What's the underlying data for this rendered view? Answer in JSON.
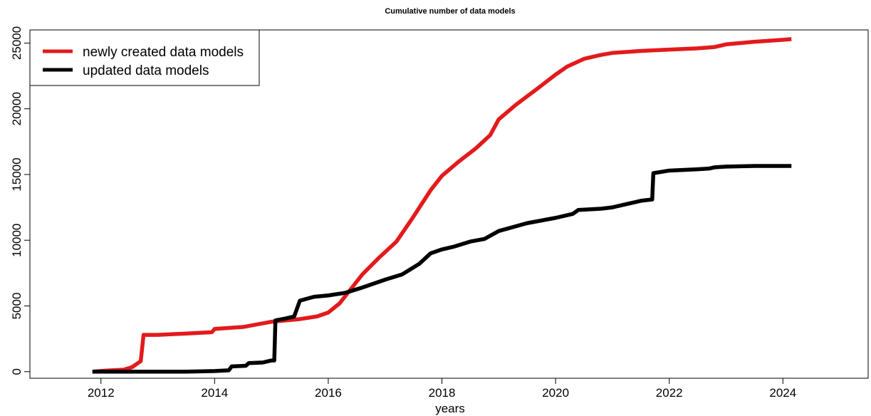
{
  "chart_data": {
    "type": "line",
    "title": "Cumulative number of data models",
    "xlabel": "years",
    "ylabel": "",
    "xlim": [
      2010.75,
      2025.5
    ],
    "ylim": [
      -500,
      26000
    ],
    "x_ticks": [
      2012,
      2014,
      2016,
      2018,
      2020,
      2022,
      2024
    ],
    "x_tick_labels": [
      "2012",
      "2014",
      "2016",
      "2018",
      "2020",
      "2022",
      "2024"
    ],
    "y_ticks": [
      0,
      5000,
      10000,
      15000,
      20000,
      25000
    ],
    "y_tick_labels": [
      "0",
      "5000",
      "10000",
      "15000",
      "20000",
      "25000"
    ],
    "grid": false,
    "legend_position": "top-left",
    "series": [
      {
        "name": "newly created data models",
        "color": "#e31a1c",
        "points": [
          [
            2011.85,
            0
          ],
          [
            2012.1,
            80
          ],
          [
            2012.4,
            150
          ],
          [
            2012.55,
            350
          ],
          [
            2012.7,
            800
          ],
          [
            2012.75,
            2800
          ],
          [
            2013.0,
            2800
          ],
          [
            2013.5,
            2900
          ],
          [
            2013.95,
            3000
          ],
          [
            2014.0,
            3250
          ],
          [
            2014.5,
            3400
          ],
          [
            2015.0,
            3800
          ],
          [
            2015.5,
            4000
          ],
          [
            2015.8,
            4200
          ],
          [
            2016.0,
            4500
          ],
          [
            2016.2,
            5200
          ],
          [
            2016.4,
            6300
          ],
          [
            2016.6,
            7400
          ],
          [
            2016.9,
            8700
          ],
          [
            2017.2,
            9900
          ],
          [
            2017.5,
            11800
          ],
          [
            2017.8,
            13800
          ],
          [
            2018.0,
            14900
          ],
          [
            2018.3,
            16000
          ],
          [
            2018.6,
            17000
          ],
          [
            2018.85,
            18000
          ],
          [
            2019.0,
            19200
          ],
          [
            2019.3,
            20300
          ],
          [
            2019.7,
            21600
          ],
          [
            2020.0,
            22600
          ],
          [
            2020.2,
            23200
          ],
          [
            2020.5,
            23800
          ],
          [
            2020.8,
            24100
          ],
          [
            2021.0,
            24250
          ],
          [
            2021.5,
            24400
          ],
          [
            2022.0,
            24500
          ],
          [
            2022.5,
            24600
          ],
          [
            2022.8,
            24700
          ],
          [
            2023.0,
            24900
          ],
          [
            2023.5,
            25100
          ],
          [
            2024.0,
            25250
          ],
          [
            2024.15,
            25300
          ]
        ]
      },
      {
        "name": "updated data models",
        "color": "#000000",
        "points": [
          [
            2011.85,
            0
          ],
          [
            2012.5,
            0
          ],
          [
            2013.0,
            0
          ],
          [
            2013.5,
            0
          ],
          [
            2014.0,
            50
          ],
          [
            2014.25,
            100
          ],
          [
            2014.3,
            400
          ],
          [
            2014.55,
            450
          ],
          [
            2014.6,
            650
          ],
          [
            2014.85,
            700
          ],
          [
            2015.0,
            850
          ],
          [
            2015.05,
            850
          ],
          [
            2015.07,
            3900
          ],
          [
            2015.25,
            4050
          ],
          [
            2015.4,
            4200
          ],
          [
            2015.5,
            5400
          ],
          [
            2015.75,
            5700
          ],
          [
            2016.0,
            5800
          ],
          [
            2016.3,
            6000
          ],
          [
            2016.6,
            6400
          ],
          [
            2017.0,
            7000
          ],
          [
            2017.3,
            7400
          ],
          [
            2017.6,
            8200
          ],
          [
            2017.8,
            9000
          ],
          [
            2018.0,
            9300
          ],
          [
            2018.2,
            9500
          ],
          [
            2018.5,
            9900
          ],
          [
            2018.75,
            10100
          ],
          [
            2019.0,
            10700
          ],
          [
            2019.5,
            11300
          ],
          [
            2020.0,
            11700
          ],
          [
            2020.3,
            12000
          ],
          [
            2020.4,
            12300
          ],
          [
            2020.8,
            12400
          ],
          [
            2021.0,
            12500
          ],
          [
            2021.3,
            12800
          ],
          [
            2021.5,
            13000
          ],
          [
            2021.7,
            13100
          ],
          [
            2021.72,
            15100
          ],
          [
            2022.0,
            15300
          ],
          [
            2022.5,
            15400
          ],
          [
            2022.7,
            15450
          ],
          [
            2022.8,
            15550
          ],
          [
            2023.0,
            15600
          ],
          [
            2023.5,
            15650
          ],
          [
            2024.0,
            15650
          ],
          [
            2024.15,
            15650
          ]
        ]
      }
    ]
  }
}
